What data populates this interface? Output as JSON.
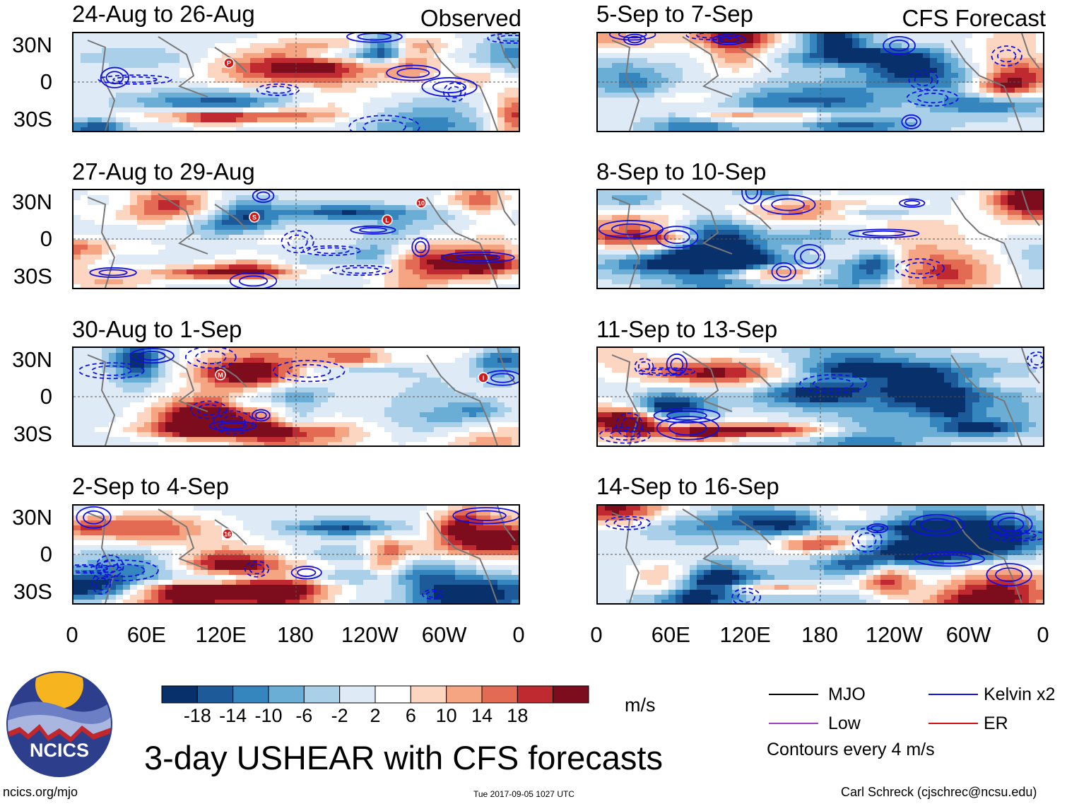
{
  "chart_data": {
    "type": "heatmap",
    "variable": "USHEAR",
    "title": "3-day USHEAR with CFS forecasts",
    "columns": [
      {
        "label": "Observed",
        "panels": [
          "24-Aug to 26-Aug",
          "27-Aug to 29-Aug",
          "30-Aug to 1-Sep",
          "2-Sep to 4-Sep"
        ]
      },
      {
        "label": "CFS Forecast",
        "panels": [
          "5-Sep to 7-Sep",
          "8-Sep to 10-Sep",
          "11-Sep to 13-Sep",
          "14-Sep to 16-Sep"
        ]
      }
    ],
    "y_ticks": [
      "30N",
      "0",
      "30S"
    ],
    "x_ticks": [
      "0",
      "60E",
      "120E",
      "180",
      "120W",
      "60W",
      "0"
    ],
    "colorbar": {
      "labels": [
        "-18",
        "-14",
        "-10",
        "-6",
        "-2",
        "2",
        "6",
        "10",
        "14",
        "18"
      ],
      "colors": [
        "#08306b",
        "#1c5a9a",
        "#3585bf",
        "#6aaed6",
        "#a9d0e8",
        "#deebf7",
        "#ffffff",
        "#fdd6c2",
        "#f6a582",
        "#e36b54",
        "#be2a2f",
        "#7d0d1c"
      ],
      "units": "m/s"
    },
    "contours": {
      "legend": [
        {
          "name": "MJO",
          "color": "#000000"
        },
        {
          "name": "Kelvin x2",
          "color": "#1010e0"
        },
        {
          "name": "Low",
          "color": "#a040c0"
        },
        {
          "name": "ER",
          "color": "#d01010"
        }
      ],
      "note": "Contours every 4 m/s"
    },
    "storm_markers": [
      {
        "panel": 0,
        "label": "P"
      },
      {
        "panel": 1,
        "label": "S"
      },
      {
        "panel": 1,
        "label": "L"
      },
      {
        "panel": 1,
        "label": "10"
      },
      {
        "panel": 2,
        "label": "M"
      },
      {
        "panel": 2,
        "label": "I"
      },
      {
        "panel": 3,
        "label": "16"
      }
    ]
  },
  "logo": {
    "text": "NCICS"
  },
  "footer": {
    "left": "ncics.org/mjo",
    "center": "Tue 2017-09-05 1027 UTC",
    "right": "Carl Schreck (cjschrec@ncsu.edu)"
  }
}
